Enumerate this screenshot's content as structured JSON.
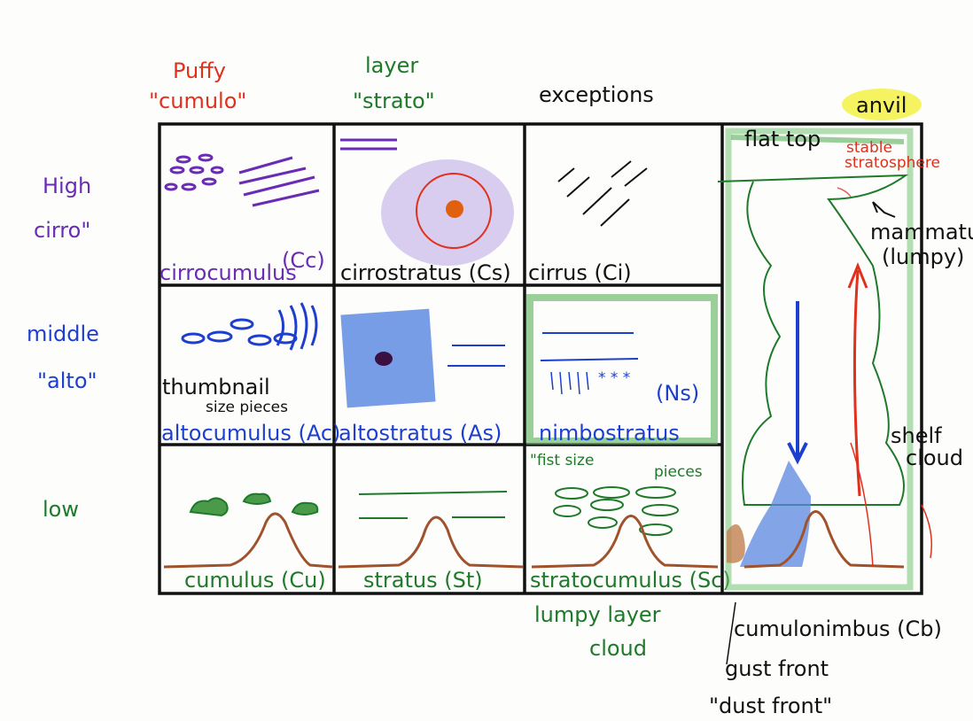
{
  "colors": {
    "purple": "#6a2bb5",
    "red": "#e0301e",
    "green": "#1e7a2a",
    "blue": "#1d3fcf",
    "brown": "#a0522d",
    "black": "#111111",
    "highlight": "#f4f03a"
  },
  "columns": {
    "cumulo": {
      "line1": "Puffy",
      "line2": "\"cumulo\""
    },
    "strato": {
      "line1": "layer",
      "line2": "\"strato\""
    },
    "exceptions": "exceptions"
  },
  "rows": {
    "high": {
      "line1": "High",
      "line2": "cirro\""
    },
    "middle": {
      "line1": "middle",
      "line2": "\"alto\""
    },
    "low": "low"
  },
  "cells": {
    "cc": {
      "abbr": "(Cc)",
      "name": "cirrocumulus"
    },
    "cs": "cirrostratus (Cs)",
    "ci": "cirrus (Ci)",
    "ac": {
      "note1": "thumbnail",
      "note2": "size pieces",
      "name": "altocumulus (Ac)"
    },
    "as": "altostratus (As)",
    "ns": {
      "abbr": "(Ns)",
      "name": "nimbostratus"
    },
    "cu": "cumulus (Cu)",
    "st": "stratus (St)",
    "sc": {
      "note1": "\"fist size",
      "note2": "pieces",
      "name": "stratocumulus (Sc)",
      "below1": "lumpy layer",
      "below2": "cloud"
    }
  },
  "cb": {
    "anvil": "anvil",
    "flat_top": "flat top",
    "stable1": "stable",
    "stable2": "stratosphere",
    "mammatus1": "mammatus",
    "mammatus2": "(lumpy)",
    "shelf1": "shelf",
    "shelf2": "cloud",
    "name": "cumulonimbus (Cb)",
    "gust": "gust front",
    "dust": "\"dust front\""
  }
}
